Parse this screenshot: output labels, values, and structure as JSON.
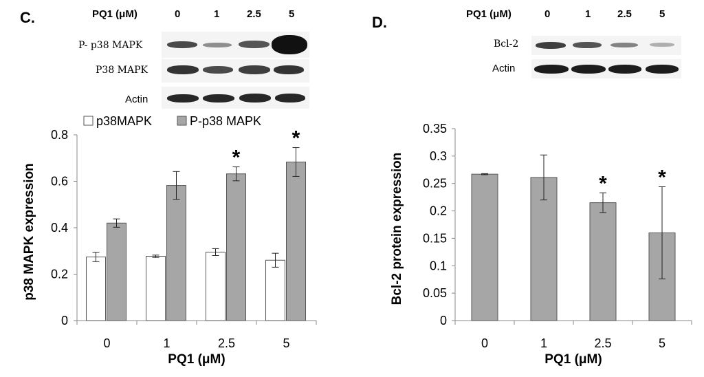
{
  "panel_c": {
    "letter": "C.",
    "blot": {
      "header_label": "PQ1 (μM)",
      "lanes": [
        "0",
        "1",
        "2.5",
        "5"
      ],
      "rows": [
        {
          "label": "P- p38 MAPK",
          "intensity": [
            0.75,
            0.45,
            0.7,
            1.0
          ]
        },
        {
          "label": "P38 MAPK",
          "intensity": [
            0.85,
            0.75,
            0.8,
            0.85
          ]
        },
        {
          "label": "Actin",
          "intensity": [
            0.9,
            0.9,
            0.9,
            0.9
          ]
        }
      ]
    }
  },
  "panel_d": {
    "letter": "D.",
    "blot": {
      "header_label": "PQ1 (μM)",
      "lanes": [
        "0",
        "1",
        "2.5",
        "5"
      ],
      "rows": [
        {
          "label": "Bcl-2",
          "intensity": [
            0.8,
            0.7,
            0.5,
            0.3
          ]
        },
        {
          "label": "Actin",
          "intensity": [
            0.95,
            0.95,
            0.95,
            0.95
          ]
        }
      ]
    }
  },
  "chart_data": [
    {
      "type": "bar",
      "categories": [
        "0",
        "1",
        "2.5",
        "5"
      ],
      "series": [
        {
          "name": "p38MAPK",
          "values": [
            0.274,
            0.277,
            0.295,
            0.26
          ],
          "errors": [
            0.02,
            0.005,
            0.015,
            0.03
          ],
          "color": "#ffffff"
        },
        {
          "name": "P-p38 MAPK",
          "values": [
            0.42,
            0.582,
            0.632,
            0.683
          ],
          "errors": [
            0.018,
            0.06,
            0.03,
            0.062
          ],
          "color": "#a6a6a6"
        }
      ],
      "significant": [
        "",
        "",
        "*",
        "*"
      ],
      "xlabel": "PQ1 (μM)",
      "ylabel": "p38 MAPK expression",
      "ylim": [
        0,
        0.8
      ],
      "yticks": [
        "0",
        "0.2",
        "0.4",
        "0.6",
        "0.8"
      ],
      "ytick_values": [
        0,
        0.2,
        0.4,
        0.6,
        0.8
      ],
      "legend_position": "top-left",
      "grid": false
    },
    {
      "type": "bar",
      "categories": [
        "0",
        "1",
        "2.5",
        "5"
      ],
      "series": [
        {
          "values": [
            0.267,
            0.261,
            0.215,
            0.16
          ],
          "errors": [
            0.001,
            0.041,
            0.018,
            0.084
          ],
          "color": "#a6a6a6"
        }
      ],
      "significant": [
        "",
        "",
        "*",
        "*"
      ],
      "xlabel": "PQ1 (μM)",
      "ylabel": "Bcl-2 protein expression",
      "ylim": [
        0,
        0.35
      ],
      "yticks": [
        "0",
        "0.05",
        "0.1",
        "0.15",
        "0.2",
        "0.25",
        "0.3",
        "0.35"
      ],
      "ytick_values": [
        0,
        0.05,
        0.1,
        0.15,
        0.2,
        0.25,
        0.3,
        0.35
      ],
      "grid": false
    }
  ]
}
